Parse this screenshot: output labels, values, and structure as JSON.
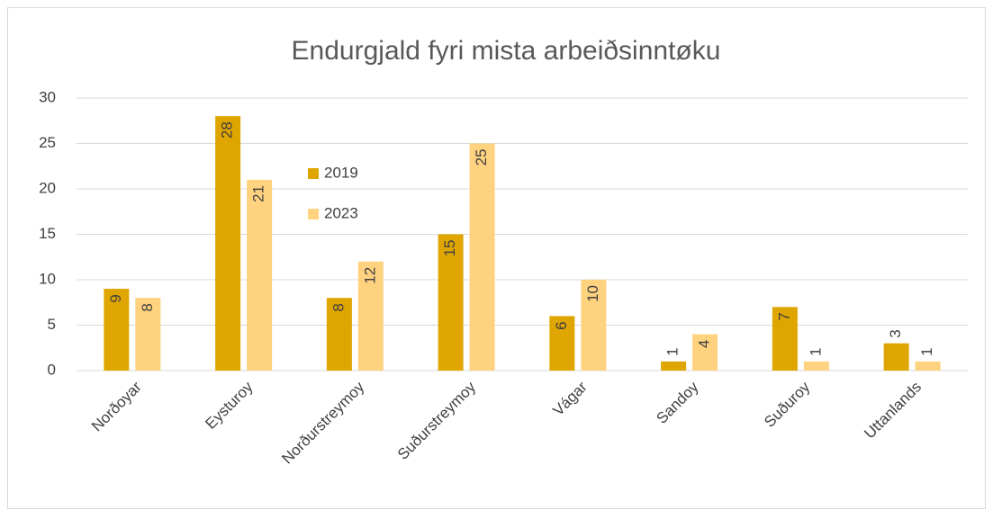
{
  "chart_data": {
    "type": "bar",
    "title": "Endurgjald fyri mista arbeiðsinntøku",
    "categories": [
      "Norðoyar",
      "Eysturoy",
      "Norðurstreymoy",
      "Suðurstreymoy",
      "Vágar",
      "Sandoy",
      "Suðuroy",
      "Uttanlands"
    ],
    "series": [
      {
        "name": "2019",
        "color": "#dfa500",
        "values": [
          9,
          28,
          8,
          15,
          6,
          1,
          7,
          3
        ]
      },
      {
        "name": "2023",
        "color": "#ffd27f",
        "values": [
          8,
          21,
          12,
          25,
          10,
          4,
          1,
          1
        ]
      }
    ],
    "ylim": [
      0,
      30
    ],
    "yticks": [
      0,
      5,
      10,
      15,
      20,
      25,
      30
    ],
    "grid": true
  }
}
